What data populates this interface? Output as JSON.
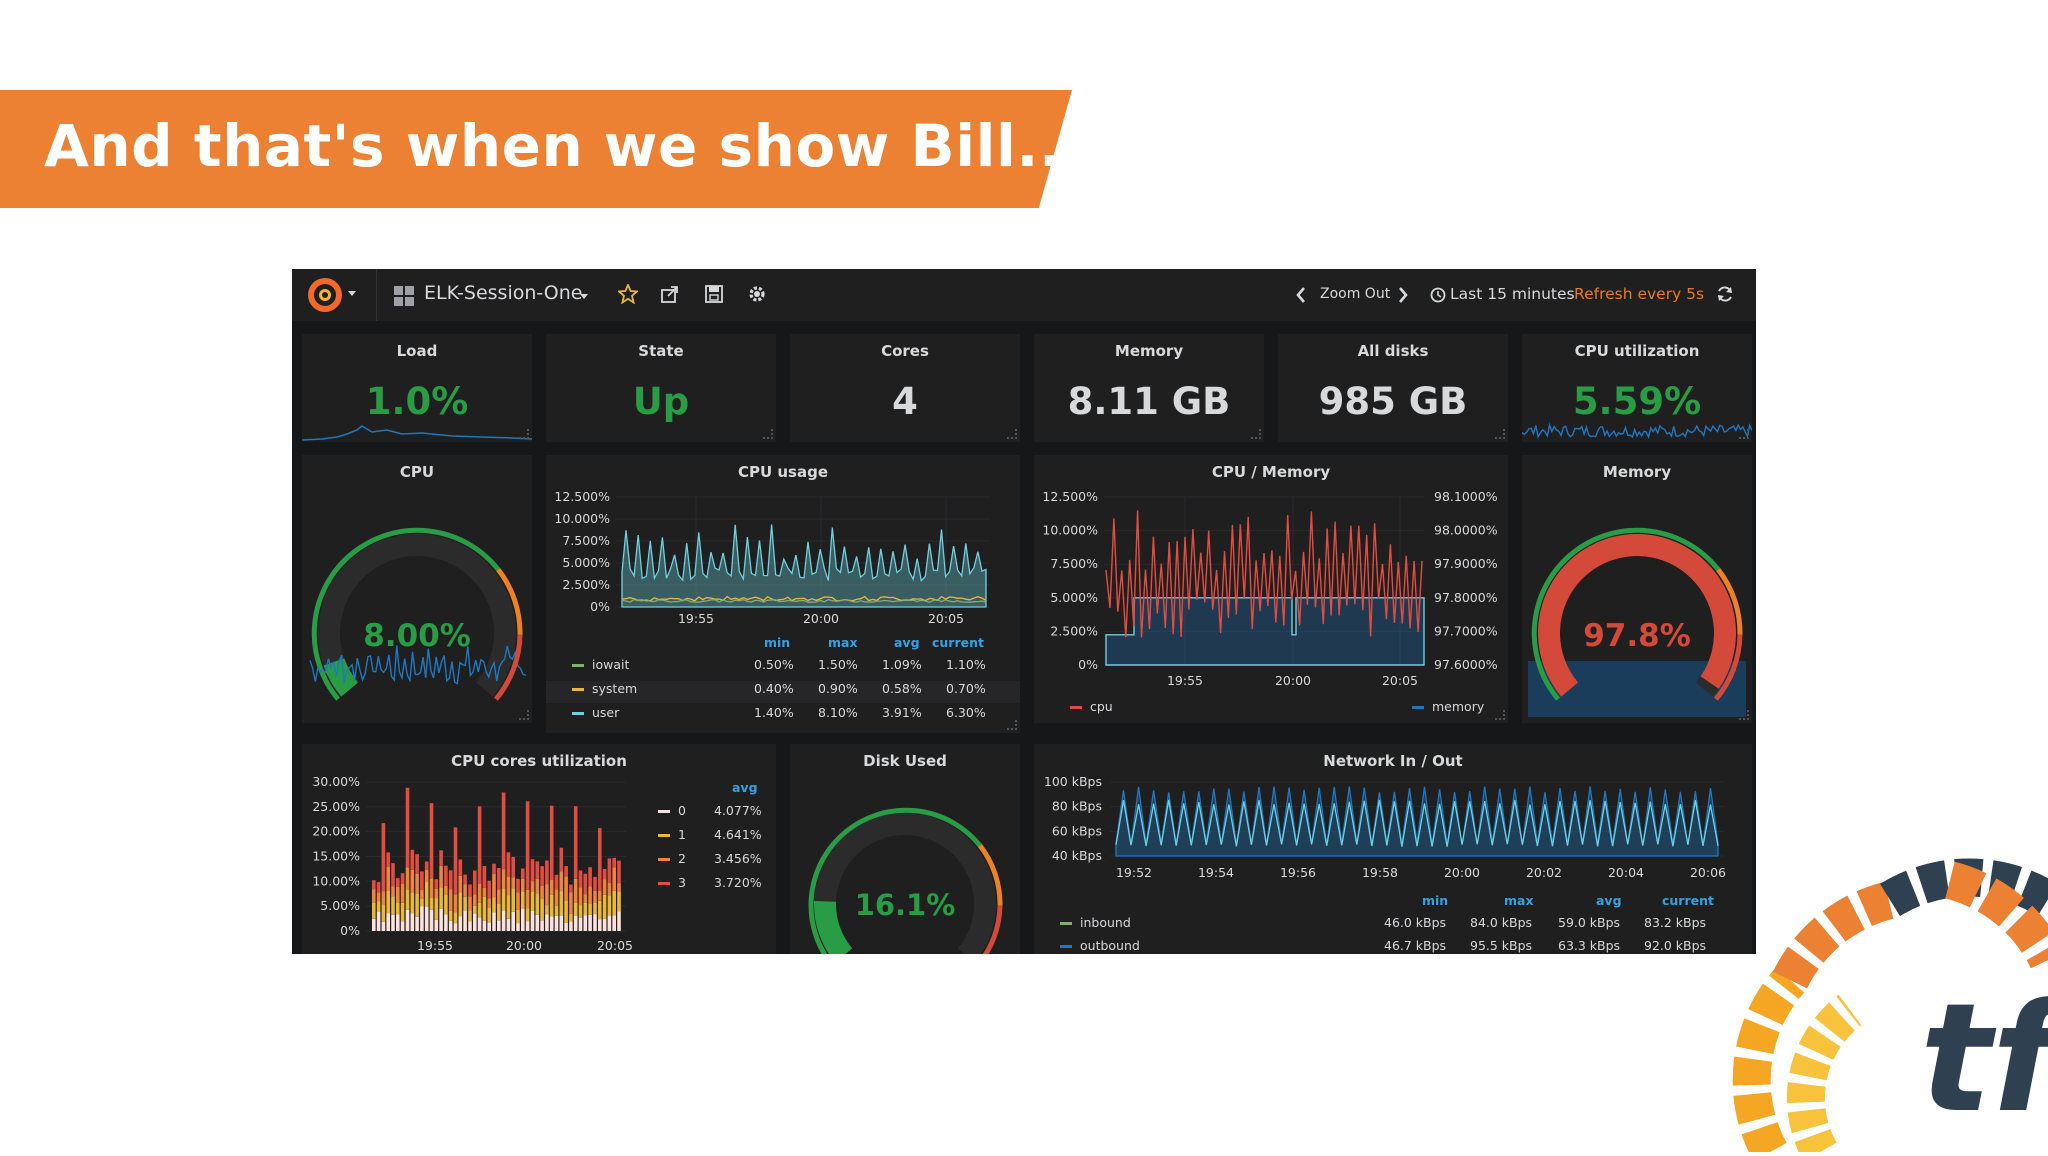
{
  "slide": {
    "banner_text": "And that's when we show Bill..."
  },
  "nav": {
    "dashboard_title": "ELK-Session-One",
    "zoom_out": "Zoom Out",
    "time_range": "Last 15 minutes",
    "refresh": "Refresh every 5s"
  },
  "singlestats": [
    {
      "title": "Load",
      "value": "1.0%",
      "color": "#299c46"
    },
    {
      "title": "State",
      "value": "Up",
      "color": "#299c46"
    },
    {
      "title": "Cores",
      "value": "4",
      "color": "#d8d9da"
    },
    {
      "title": "Memory",
      "value": "8.11 GB",
      "color": "#d8d9da"
    },
    {
      "title": "All disks",
      "value": "985 GB",
      "color": "#d8d9da"
    },
    {
      "title": "CPU utilization",
      "value": "5.59%",
      "color": "#299c46"
    }
  ],
  "gauges": {
    "cpu": {
      "title": "CPU",
      "value": "8.00%",
      "level": 0.08,
      "color": "#299c46"
    },
    "memory": {
      "title": "Memory",
      "value": "97.8%",
      "level": 0.978,
      "color": "#d44a3a"
    },
    "disk": {
      "title": "Disk Used",
      "value": "16.1%",
      "level": 0.161,
      "color": "#299c46"
    }
  },
  "cpu_usage": {
    "title": "CPU usage",
    "y_ticks": [
      "12.500%",
      "10.000%",
      "7.500%",
      "5.000%",
      "2.500%",
      "0%"
    ],
    "x_ticks": [
      "19:55",
      "20:00",
      "20:05"
    ],
    "legend_headers": [
      "min",
      "max",
      "avg",
      "current"
    ],
    "legend": [
      {
        "name": "iowait",
        "color": "#7eb26d",
        "min": "0.50%",
        "max": "1.50%",
        "avg": "1.09%",
        "current": "1.10%"
      },
      {
        "name": "system",
        "color": "#eab839",
        "min": "0.40%",
        "max": "0.90%",
        "avg": "0.58%",
        "current": "0.70%"
      },
      {
        "name": "user",
        "color": "#6ed0e0",
        "min": "1.40%",
        "max": "8.10%",
        "avg": "3.91%",
        "current": "6.30%"
      }
    ]
  },
  "cpu_memory": {
    "title": "CPU / Memory",
    "y_left_ticks": [
      "12.500%",
      "10.000%",
      "7.500%",
      "5.000%",
      "2.500%",
      "0%"
    ],
    "y_right_ticks": [
      "98.1000%",
      "98.0000%",
      "97.9000%",
      "97.8000%",
      "97.7000%",
      "97.6000%"
    ],
    "x_ticks": [
      "19:55",
      "20:00",
      "20:05"
    ],
    "legend": [
      {
        "name": "cpu",
        "color": "#e24d42"
      },
      {
        "name": "memory",
        "color": "#1f78c1"
      }
    ]
  },
  "cpu_cores": {
    "title": "CPU cores utilization",
    "y_ticks": [
      "30.00%",
      "25.00%",
      "20.00%",
      "15.00%",
      "10.00%",
      "5.00%",
      "0%"
    ],
    "x_ticks": [
      "19:55",
      "20:00",
      "20:05"
    ],
    "legend_header": "avg",
    "legend": [
      {
        "name": "0",
        "color": "#fce2de",
        "avg": "4.077%"
      },
      {
        "name": "1",
        "color": "#eab839",
        "avg": "4.641%"
      },
      {
        "name": "2",
        "color": "#ef843c",
        "avg": "3.456%"
      },
      {
        "name": "3",
        "color": "#e24d42",
        "avg": "3.720%"
      }
    ]
  },
  "network": {
    "title": "Network In / Out",
    "y_ticks": [
      "100 kBps",
      "80 kBps",
      "60 kBps",
      "40 kBps"
    ],
    "x_ticks": [
      "19:52",
      "19:54",
      "19:56",
      "19:58",
      "20:00",
      "20:02",
      "20:04",
      "20:06"
    ],
    "legend_headers": [
      "min",
      "max",
      "avg",
      "current"
    ],
    "legend": [
      {
        "name": "inbound",
        "color": "#7eb26d",
        "min": "46.0 kBps",
        "max": "84.0 kBps",
        "avg": "59.0 kBps",
        "current": "83.2 kBps"
      },
      {
        "name": "outbound",
        "color": "#1f78c1",
        "min": "46.7 kBps",
        "max": "95.5 kBps",
        "avg": "63.3 kBps",
        "current": "92.0 kBps"
      }
    ]
  },
  "colors": {
    "accent": "#ec8033",
    "panel_bg": "#1f1f20",
    "dash_bg": "#161719",
    "text": "#d8d9da",
    "legend_header": "#33a2e5",
    "refresh": "#eb7b18"
  }
}
